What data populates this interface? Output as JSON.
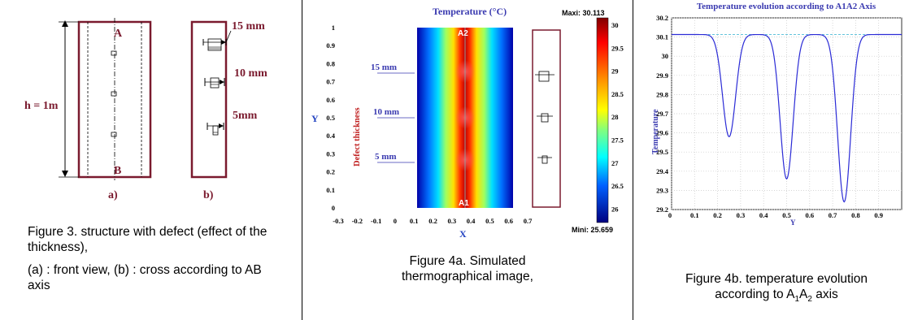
{
  "fig3": {
    "label_A": "A",
    "label_B": "B",
    "height_label": "h = 1m",
    "sub_a": "a)",
    "sub_b": "b)",
    "dim_15": "15 mm",
    "dim_10": "10 mm",
    "dim_5": "5mm",
    "caption1": "Figure 3. structure with defect (effect of the thickness),",
    "caption2": "(a) : front view, (b) : cross according to AB axis"
  },
  "fig4a": {
    "title": "Temperature (°C)",
    "maxi": "Maxi: 30.113",
    "mini": "Mini: 25.659",
    "label_A2": "A2",
    "label_A1": "A1",
    "xlabel": "X",
    "ylabel": "Y",
    "side_label": "Defect thickness",
    "arrow_15": "15 mm",
    "arrow_10": "10 mm",
    "arrow_5": "5 mm",
    "y_ticks": [
      "1",
      "0.9",
      "0.8",
      "0.7",
      "0.6",
      "0.5",
      "0.4",
      "0.3",
      "0.2",
      "0.1",
      "0"
    ],
    "x_ticks": [
      "-0.3",
      "-0.2",
      "-0.1",
      "0",
      "0.1",
      "0.2",
      "0.3",
      "0.4",
      "0.5",
      "0.6",
      "0.7"
    ],
    "cb_ticks": [
      "30",
      "29.5",
      "29",
      "28.5",
      "28",
      "27.5",
      "27",
      "26.5",
      "26"
    ],
    "caption": "Figure 4a. Simulated thermographical image,",
    "colors": {
      "hot": "#8b0000",
      "cold": "#00008b"
    }
  },
  "fig4b": {
    "caption_line1": "Figure 4b. temperature evolution",
    "caption_line2": "according to A",
    "caption_sub1": "1",
    "caption_mid": "A",
    "caption_sub2": "2",
    "caption_end": " axis"
  },
  "chart_data": {
    "type": "line",
    "title": "Temperature evolution according to A1A2 Axis",
    "xlabel": "Y",
    "ylabel": "Temperature",
    "xlim": [
      0,
      1
    ],
    "ylim": [
      29.2,
      30.2
    ],
    "x_ticks": [
      "0",
      "0.1",
      "0.2",
      "0.3",
      "0.4",
      "0.5",
      "0.6",
      "0.7",
      "0.8",
      "0.9"
    ],
    "y_ticks": [
      "30.2",
      "30.1",
      "30",
      "29.9",
      "29.8",
      "29.7",
      "29.6",
      "29.5",
      "29.4",
      "29.3",
      "29.2"
    ],
    "grid": true,
    "color": "#2b2bd6",
    "reference_line": 30.113,
    "baseline": 30.113,
    "dips": [
      {
        "x": 0.25,
        "y": 29.58
      },
      {
        "x": 0.5,
        "y": 29.36
      },
      {
        "x": 0.75,
        "y": 29.24
      }
    ]
  }
}
